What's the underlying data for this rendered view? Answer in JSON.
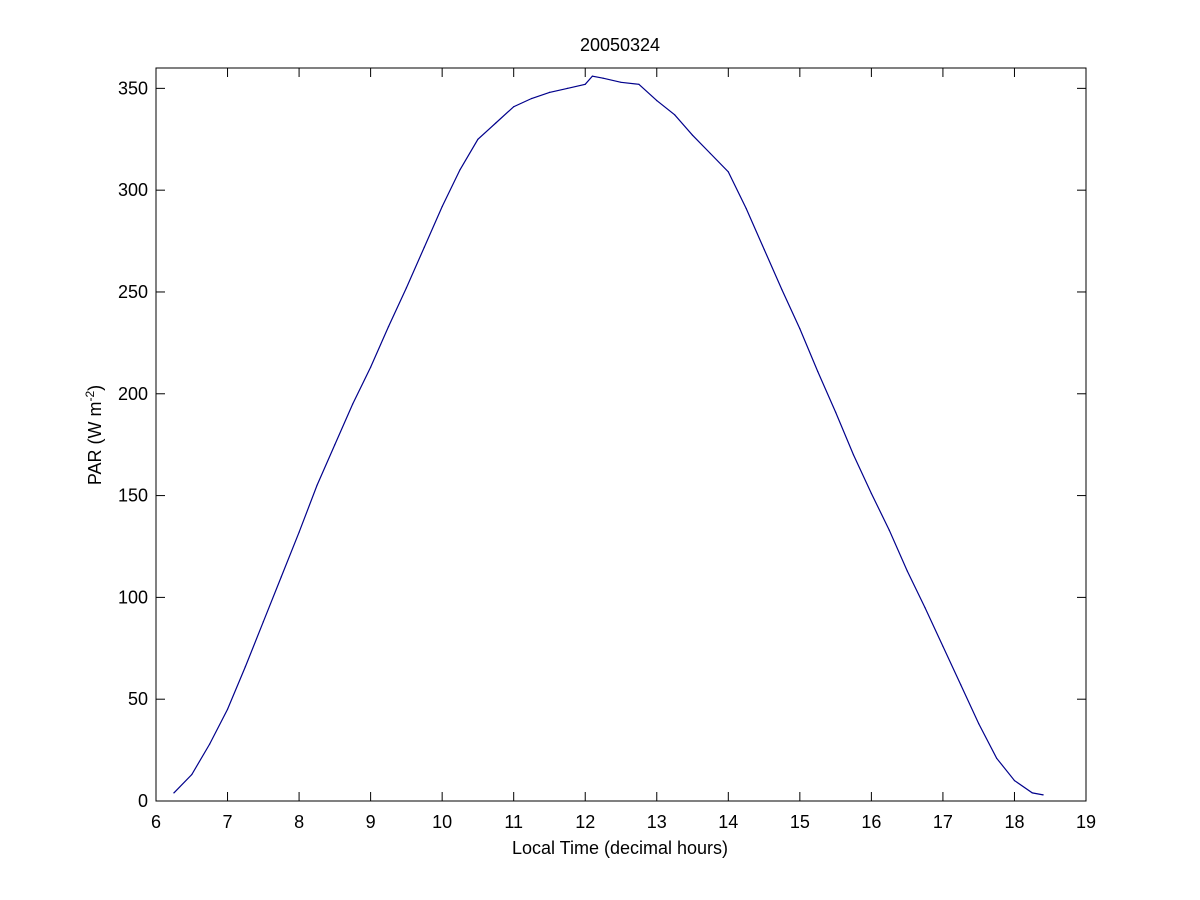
{
  "chart_data": {
    "type": "line",
    "title": "20050324",
    "xlabel": "Local Time (decimal hours)",
    "ylabel": {
      "main": "PAR (W m",
      "superscript": "-2",
      "close": ")"
    },
    "xlim": [
      6,
      19
    ],
    "ylim": [
      0,
      360
    ],
    "xticks": [
      "6",
      "7",
      "8",
      "9",
      "10",
      "11",
      "12",
      "13",
      "14",
      "15",
      "16",
      "17",
      "18",
      "19"
    ],
    "yticks": [
      "0",
      "50",
      "100",
      "150",
      "200",
      "250",
      "300",
      "350"
    ],
    "grid": false,
    "line_color": "#00008b",
    "series": [
      {
        "x": [
          6.25,
          6.5,
          6.75,
          7.0,
          7.25,
          7.5,
          7.75,
          8.0,
          8.25,
          8.5,
          8.75,
          9.0,
          9.25,
          9.5,
          9.75,
          10.0,
          10.25,
          10.5,
          10.75,
          11.0,
          11.25,
          11.5,
          11.75,
          12.0,
          12.1,
          12.25,
          12.5,
          12.75,
          13.0,
          13.25,
          13.5,
          13.75,
          14.0,
          14.25,
          14.5,
          14.75,
          15.0,
          15.25,
          15.5,
          15.75,
          16.0,
          16.25,
          16.5,
          16.75,
          17.0,
          17.25,
          17.5,
          17.75,
          18.0,
          18.25,
          18.4
        ],
        "y": [
          4,
          13,
          28,
          45,
          66,
          88,
          110,
          132,
          155,
          175,
          195,
          213,
          233,
          252,
          272,
          292,
          310,
          325,
          333,
          341,
          345,
          348,
          350,
          352,
          356,
          355,
          353,
          352,
          344,
          337,
          327,
          318,
          309,
          291,
          271,
          251,
          232,
          211,
          191,
          170,
          151,
          133,
          113,
          95,
          76,
          57,
          38,
          21,
          10,
          4,
          3
        ]
      }
    ]
  }
}
